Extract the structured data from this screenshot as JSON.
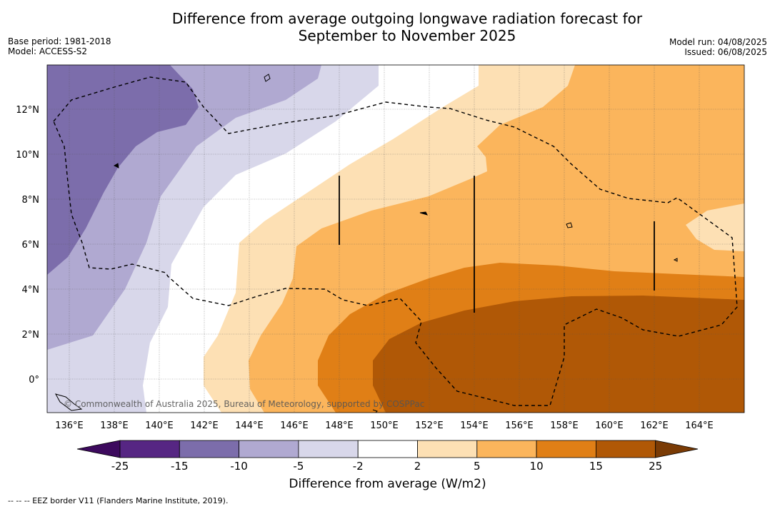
{
  "header": {
    "title_line1": "Difference from average outgoing longwave radiation forecast for",
    "title_line2": "September to November 2025",
    "base_period": "Base period: 1981-2018",
    "model": "Model: ACCESS-S2",
    "model_run": "Model run: 04/08/2025",
    "issued": "Issued: 06/08/2025"
  },
  "map": {
    "lon_range": [
      135,
      166
    ],
    "lat_range": [
      -1.5,
      14
    ],
    "lon_ticks": [
      "136°E",
      "138°E",
      "140°E",
      "142°E",
      "144°E",
      "146°E",
      "148°E",
      "150°E",
      "152°E",
      "154°E",
      "156°E",
      "158°E",
      "160°E",
      "162°E",
      "164°E"
    ],
    "lat_ticks": [
      "12°N",
      "10°N",
      "8°N",
      "6°N",
      "4°N",
      "2°N",
      "0°"
    ],
    "copyright": "© Commonwealth of Australia 2025, Bureau of Meteorology, supported by COSPPac"
  },
  "colorbar": {
    "labels": [
      "-25",
      "-15",
      "-10",
      "-5",
      "-2",
      "2",
      "5",
      "10",
      "15",
      "25"
    ],
    "colors": [
      "#3d0a5e",
      "#562683",
      "#7c6dab",
      "#b0a9d1",
      "#d8d7ea",
      "#ffffff",
      "#fde0b4",
      "#fbb55c",
      "#e07f16",
      "#b05806",
      "#7a3b05"
    ],
    "title": "Difference from average (W/m2)"
  },
  "footnote": "--  --  -- EEZ border V11 (Flanders Marine Institute, 2019)."
}
